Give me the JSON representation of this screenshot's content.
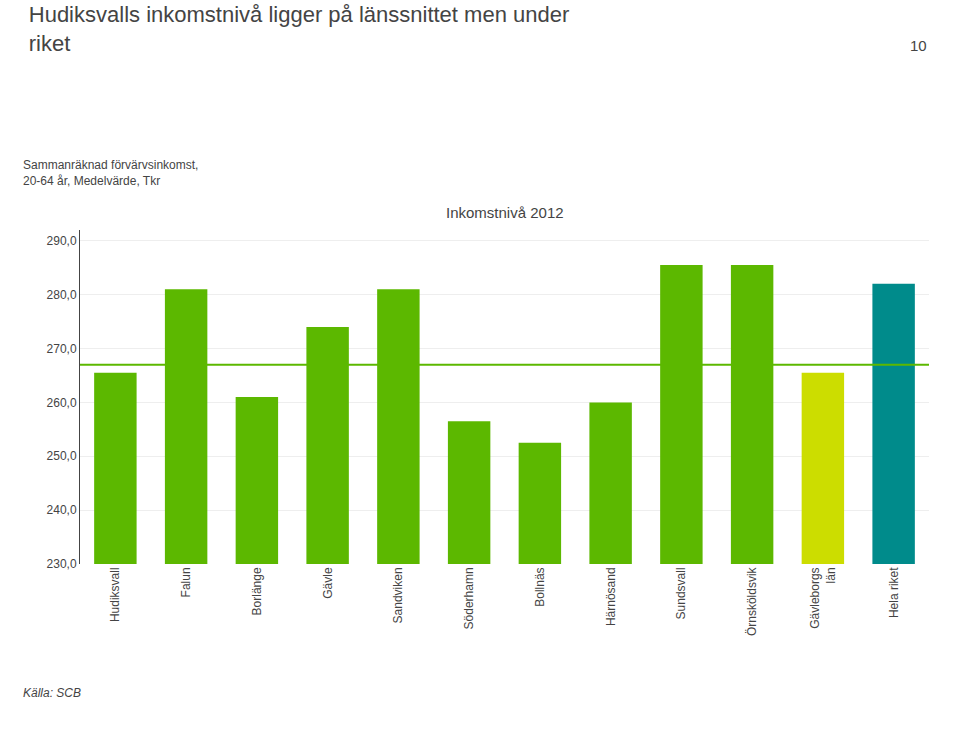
{
  "chart_data": {
    "type": "bar",
    "title": "Hudiksvalls inkomstnivå ligger på länssnittet men under\nriket",
    "subtitle": "Inkomstnivå 2012",
    "ylabel": "Sammanräknad förvärvsinkomst,\n20-64 år, Medelvärde, Tkr",
    "annotations": [
      "Källa: SCB",
      "10"
    ],
    "categories": [
      "Hudiksvall",
      "Falun",
      "Borlänge",
      "Gävle",
      "Sandviken",
      "Söderhamn",
      "Bollnäs",
      "Härnösand",
      "Sundsvall",
      "Örnsköldsvik",
      "Gävleborgs\nlän",
      "Hela riket"
    ],
    "values": [
      265.5,
      281.0,
      261.0,
      274.0,
      281.0,
      256.5,
      252.5,
      260.0,
      285.5,
      285.5,
      265.5,
      282.0
    ],
    "colors": [
      "#5cb800",
      "#5cb800",
      "#5cb800",
      "#5cb800",
      "#5cb800",
      "#5cb800",
      "#5cb800",
      "#5cb800",
      "#5cb800",
      "#5cb800",
      "#ccdd00",
      "#008b8b"
    ],
    "reference_line": {
      "value": 267.0,
      "color": "#5cb800"
    },
    "ylim": [
      230.0,
      292.0
    ],
    "yticks": [
      {
        "value": 230.0,
        "label": "230,0"
      },
      {
        "value": 240.0,
        "label": "240,0"
      },
      {
        "value": 250.0,
        "label": "250,0"
      },
      {
        "value": 260.0,
        "label": "260,0"
      },
      {
        "value": 270.0,
        "label": "270,0"
      },
      {
        "value": 280.0,
        "label": "280,0"
      },
      {
        "value": 290.0,
        "label": "290,0"
      }
    ],
    "grid": true
  }
}
